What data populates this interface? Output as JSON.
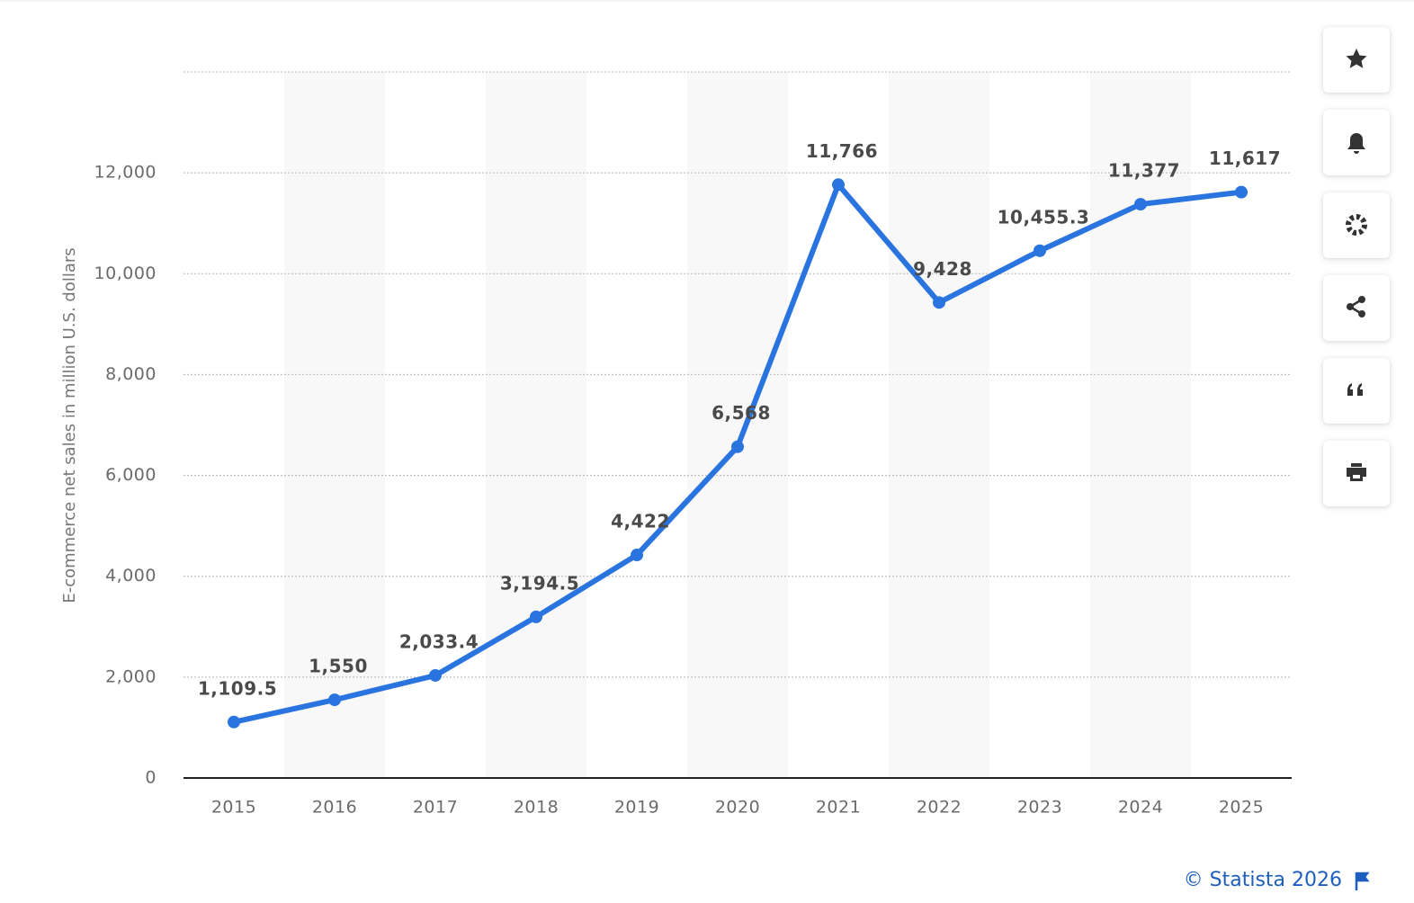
{
  "chart_data": {
    "type": "line",
    "y_axis_label": "E-commerce net sales in million U.S. dollars",
    "source": "© Statista 2026",
    "categories": [
      "2015",
      "2016",
      "2017",
      "2018",
      "2019",
      "2020",
      "2021",
      "2022",
      "2023",
      "2024",
      "2025"
    ],
    "values": [
      1109.5,
      1550,
      2033.4,
      3194.5,
      4422,
      6568,
      11766,
      9428,
      10455.3,
      11377,
      11617
    ],
    "value_labels": [
      "1,109.5",
      "1,550",
      "2,033.4",
      "3,194.5",
      "4,422",
      "6,568",
      "11,766",
      "9,428",
      "10,455.3",
      "11,377",
      "11,617"
    ],
    "color": "#2a74e0",
    "ylim": [
      0,
      14000
    ],
    "yticks": [
      0,
      {
        "value": 2000,
        "label": "2,000"
      },
      {
        "value": 4000,
        "label": "4,000"
      },
      {
        "value": 6000,
        "label": "6,000"
      },
      {
        "value": 8000,
        "label": "8,000"
      },
      {
        "value": 10000,
        "label": "10,000"
      },
      {
        "value": 12000,
        "label": "12,000"
      }
    ],
    "grid": true
  }
}
